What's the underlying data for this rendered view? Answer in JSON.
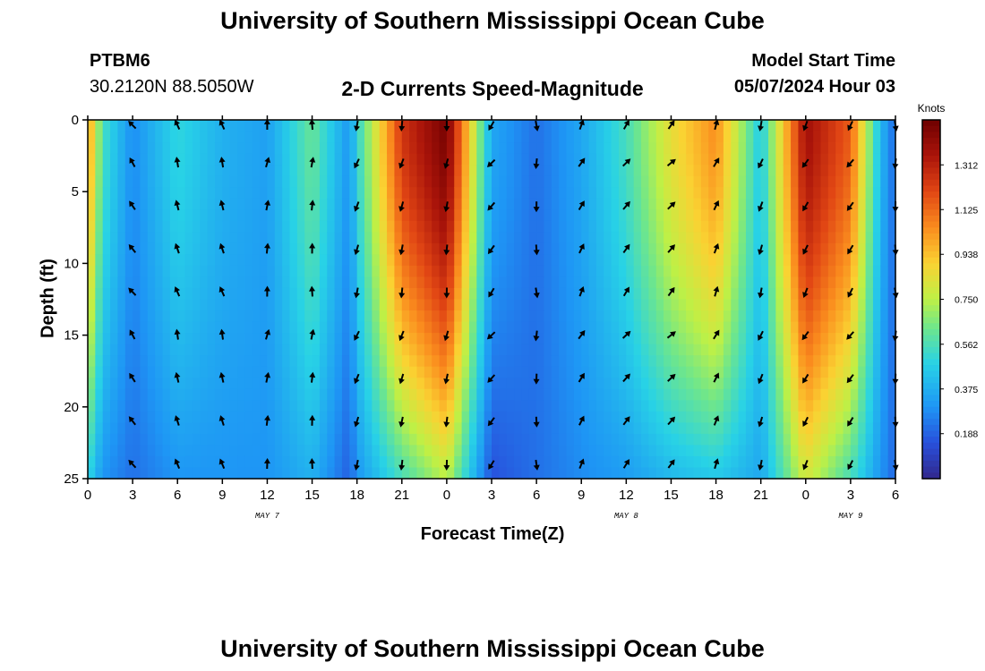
{
  "page": {
    "title_top": "University of Southern Mississippi Ocean Cube",
    "title_bottom": "University of Southern Mississippi Ocean Cube",
    "station_id": "PTBM6",
    "station_coords": "30.2120N  88.5050W",
    "model_start_label": "Model Start Time",
    "model_start_value": "05/07/2024 Hour 03"
  },
  "chart_data": {
    "type": "heatmap",
    "title": "2-D Currents Speed-Magnitude",
    "xlabel": "Forecast Time(Z)",
    "ylabel": "Depth (ft)",
    "x_range": [
      0,
      54
    ],
    "y_range": [
      0,
      25
    ],
    "x_ticks": [
      0,
      3,
      6,
      9,
      12,
      15,
      18,
      21,
      24,
      27,
      30,
      33,
      36,
      39,
      42,
      45,
      48,
      51,
      54
    ],
    "x_tick_labels": [
      "0",
      "3",
      "6",
      "9",
      "12",
      "15",
      "18",
      "21",
      "0",
      "3",
      "6",
      "9",
      "12",
      "15",
      "18",
      "21",
      "0",
      "3",
      "6"
    ],
    "y_ticks": [
      0,
      5,
      10,
      15,
      20,
      25
    ],
    "y_tick_labels": [
      "0",
      "5",
      "10",
      "15",
      "20",
      "25"
    ],
    "date_labels": [
      {
        "text": "MAY 7",
        "hour": 12
      },
      {
        "text": "MAY 8",
        "hour": 36
      },
      {
        "text": "MAY 9",
        "hour": 51
      }
    ],
    "colorbar": {
      "label": "Knots",
      "range": [
        0.0,
        1.5
      ],
      "ticks": [
        0.188,
        0.375,
        0.562,
        0.75,
        0.938,
        1.125,
        1.312
      ],
      "tick_labels": [
        "0.188",
        "0.375",
        "0.562",
        "0.750",
        "0.938",
        "1.125",
        "1.312"
      ]
    },
    "speed_profile": {
      "description": "approximate speed (knots) vs forecast hour; surface and bottom values",
      "hours": [
        0,
        1,
        3,
        6,
        9,
        12,
        15,
        17.5,
        18,
        21,
        24,
        27,
        30,
        33,
        36,
        39,
        42,
        45,
        48,
        51,
        53,
        54
      ],
      "surface": [
        1.05,
        0.55,
        0.28,
        0.5,
        0.38,
        0.33,
        0.62,
        0.3,
        0.5,
        1.25,
        1.48,
        0.35,
        0.22,
        0.35,
        0.55,
        0.85,
        1.05,
        0.45,
        1.38,
        1.15,
        0.4,
        0.2
      ],
      "bottom": [
        0.5,
        0.3,
        0.22,
        0.3,
        0.3,
        0.3,
        0.38,
        0.18,
        0.3,
        0.55,
        0.75,
        0.15,
        0.22,
        0.28,
        0.32,
        0.4,
        0.45,
        0.35,
        0.8,
        0.55,
        0.3,
        0.2
      ]
    },
    "arrow_hours": [
      3,
      6,
      9,
      12,
      15,
      18,
      21,
      24,
      27,
      30,
      33,
      36,
      39,
      42,
      45,
      48,
      51,
      54
    ],
    "arrow_depths": [
      0,
      3,
      6,
      9,
      12,
      15,
      18,
      21,
      24
    ],
    "arrow_directions_deg": {
      "description": "compass heading per arrow column (0 = north/up)",
      "by_hour": {
        "3": 325,
        "6": 345,
        "9": 345,
        "12": 10,
        "15": 5,
        "18": 200,
        "21": 195,
        "24": 190,
        "27": 220,
        "30": 180,
        "33": 30,
        "36": 40,
        "39": 45,
        "42": 25,
        "45": 200,
        "48": 210,
        "51": 215,
        "54": 180
      }
    }
  }
}
